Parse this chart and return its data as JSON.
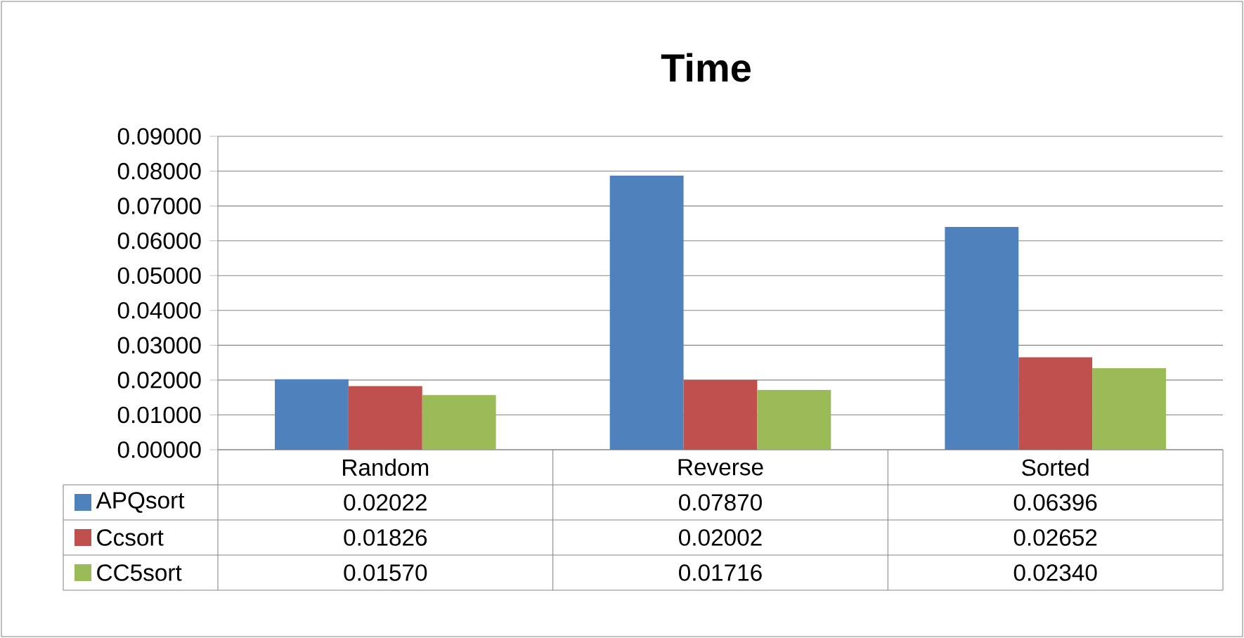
{
  "chart_data": {
    "type": "bar",
    "title": "Time",
    "categories": [
      "Random",
      "Reverse",
      "Sorted"
    ],
    "series": [
      {
        "name": "APQsort",
        "color": "#4f81bd",
        "values": [
          0.02022,
          0.0787,
          0.06396
        ],
        "value_labels": [
          "0.02022",
          "0.07870",
          "0.06396"
        ]
      },
      {
        "name": "Ccsort",
        "color": "#c0504d",
        "values": [
          0.01826,
          0.02002,
          0.02652
        ],
        "value_labels": [
          "0.01826",
          "0.02002",
          "0.02652"
        ]
      },
      {
        "name": "CC5sort",
        "color": "#9bbb59",
        "values": [
          0.0157,
          0.01716,
          0.0234
        ],
        "value_labels": [
          "0.01570",
          "0.01716",
          "0.02340"
        ]
      }
    ],
    "ylim": [
      0,
      0.09
    ],
    "yticks": [
      {
        "value": 0,
        "label": "0.00000"
      },
      {
        "value": 0.01,
        "label": "0.01000"
      },
      {
        "value": 0.02,
        "label": "0.02000"
      },
      {
        "value": 0.03,
        "label": "0.03000"
      },
      {
        "value": 0.04,
        "label": "0.04000"
      },
      {
        "value": 0.05,
        "label": "0.05000"
      },
      {
        "value": 0.06,
        "label": "0.06000"
      },
      {
        "value": 0.07,
        "label": "0.07000"
      },
      {
        "value": 0.08,
        "label": "0.08000"
      },
      {
        "value": 0.09,
        "label": "0.09000"
      }
    ],
    "grid": "y",
    "legend": "bottom left"
  }
}
